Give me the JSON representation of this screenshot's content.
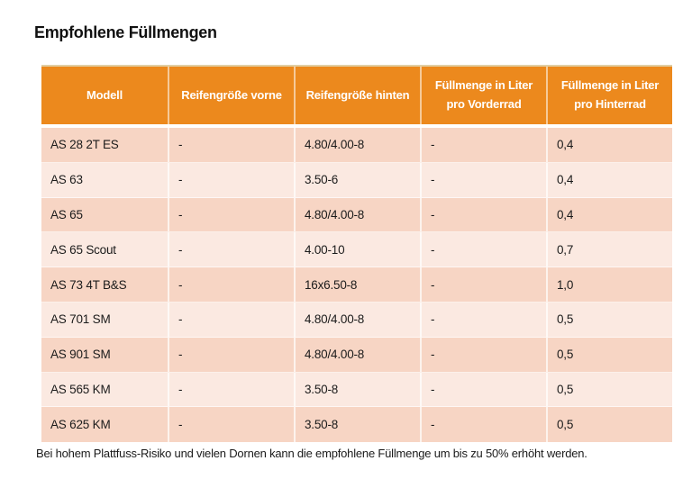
{
  "title": "Empfohlene Füllmengen",
  "table": {
    "columns": [
      "Modell",
      "Reifengröße vorne",
      "Reifengröße hinten",
      "Füllmenge in Liter pro Vorderrad",
      "Füllmenge in Liter pro Hinterrad"
    ],
    "rows": [
      [
        "AS 28 2T ES",
        "-",
        "4.80/4.00-8",
        "-",
        "0,4"
      ],
      [
        "AS 63",
        "-",
        "3.50-6",
        "-",
        "0,4"
      ],
      [
        "AS 65",
        "-",
        "4.80/4.00-8",
        "-",
        "0,4"
      ],
      [
        "AS 65 Scout",
        "-",
        "4.00-10",
        "-",
        "0,7"
      ],
      [
        "AS 73 4T B&S",
        "-",
        "16x6.50-8",
        "-",
        "1,0"
      ],
      [
        "AS 701 SM",
        "-",
        "4.80/4.00-8",
        "-",
        "0,5"
      ],
      [
        "AS 901 SM",
        "-",
        "4.80/4.00-8",
        "-",
        "0,5"
      ],
      [
        "AS 565 KM",
        "-",
        "3.50-8",
        "-",
        "0,5"
      ],
      [
        "AS 625 KM",
        "-",
        "3.50-8",
        "-",
        "0,5"
      ]
    ]
  },
  "footnote": "Bei hohem Plattfuss-Risiko und vielen Dornen kann die empfohlene Füllmenge um bis zu 50% erhöht werden.",
  "colors": {
    "header_bg": "#EC891D",
    "header_text": "#FFFFFF",
    "header_top_border": "#E0CFA4",
    "row_odd": "#F7D5C4",
    "row_even": "#FBE9E1",
    "body_text": "#1B1B1B",
    "background": "#FFFFFF"
  }
}
